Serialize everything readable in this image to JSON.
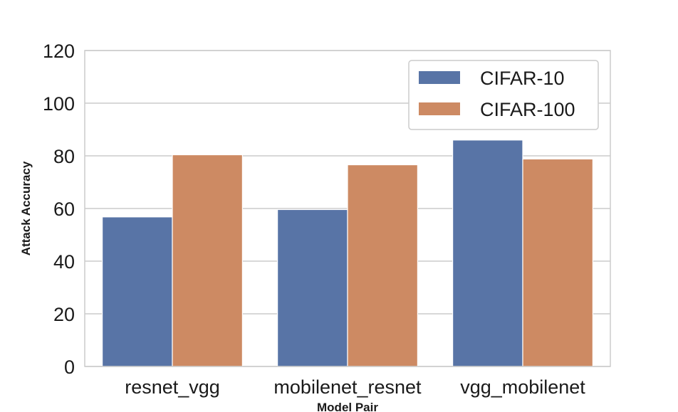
{
  "chart_data": {
    "type": "bar",
    "title": "",
    "xlabel": "Model Pair",
    "ylabel": "Attack Accuracy",
    "categories": [
      "resnet_vgg",
      "mobilenet_resnet",
      "vgg_mobilenet"
    ],
    "series": [
      {
        "name": "CIFAR-10",
        "color": "#5874a6",
        "values": [
          56.8,
          59.6,
          86.0
        ]
      },
      {
        "name": "CIFAR-100",
        "color": "#cd8a63",
        "values": [
          80.4,
          76.6,
          78.8
        ]
      }
    ],
    "ylim": [
      0,
      120
    ],
    "yticks": [
      "0",
      "20",
      "40",
      "60",
      "80",
      "100",
      "120"
    ],
    "grid": true,
    "legend_position": "top-right"
  }
}
